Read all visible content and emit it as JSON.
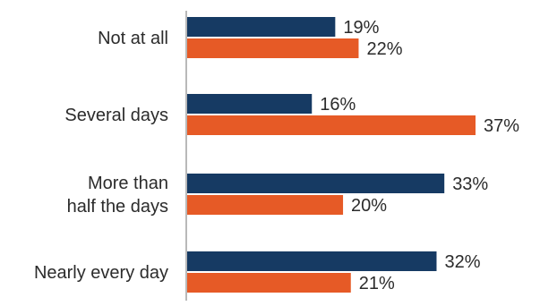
{
  "chart_data": {
    "type": "bar",
    "orientation": "horizontal",
    "categories": [
      [
        "Not at all"
      ],
      [
        "Several days"
      ],
      [
        "More than",
        "half the days"
      ],
      [
        "Nearly every day"
      ]
    ],
    "series": [
      {
        "values": [
          19,
          16,
          33,
          32
        ],
        "labels": [
          "19%",
          "16%",
          "33%",
          "32%"
        ],
        "color": "#163a63"
      },
      {
        "values": [
          22,
          37,
          20,
          21
        ],
        "labels": [
          "22%",
          "37%",
          "20%",
          "21%"
        ],
        "color": "#e65a26"
      }
    ],
    "xlim": [
      0,
      37
    ],
    "grid": false,
    "legend": "none"
  }
}
